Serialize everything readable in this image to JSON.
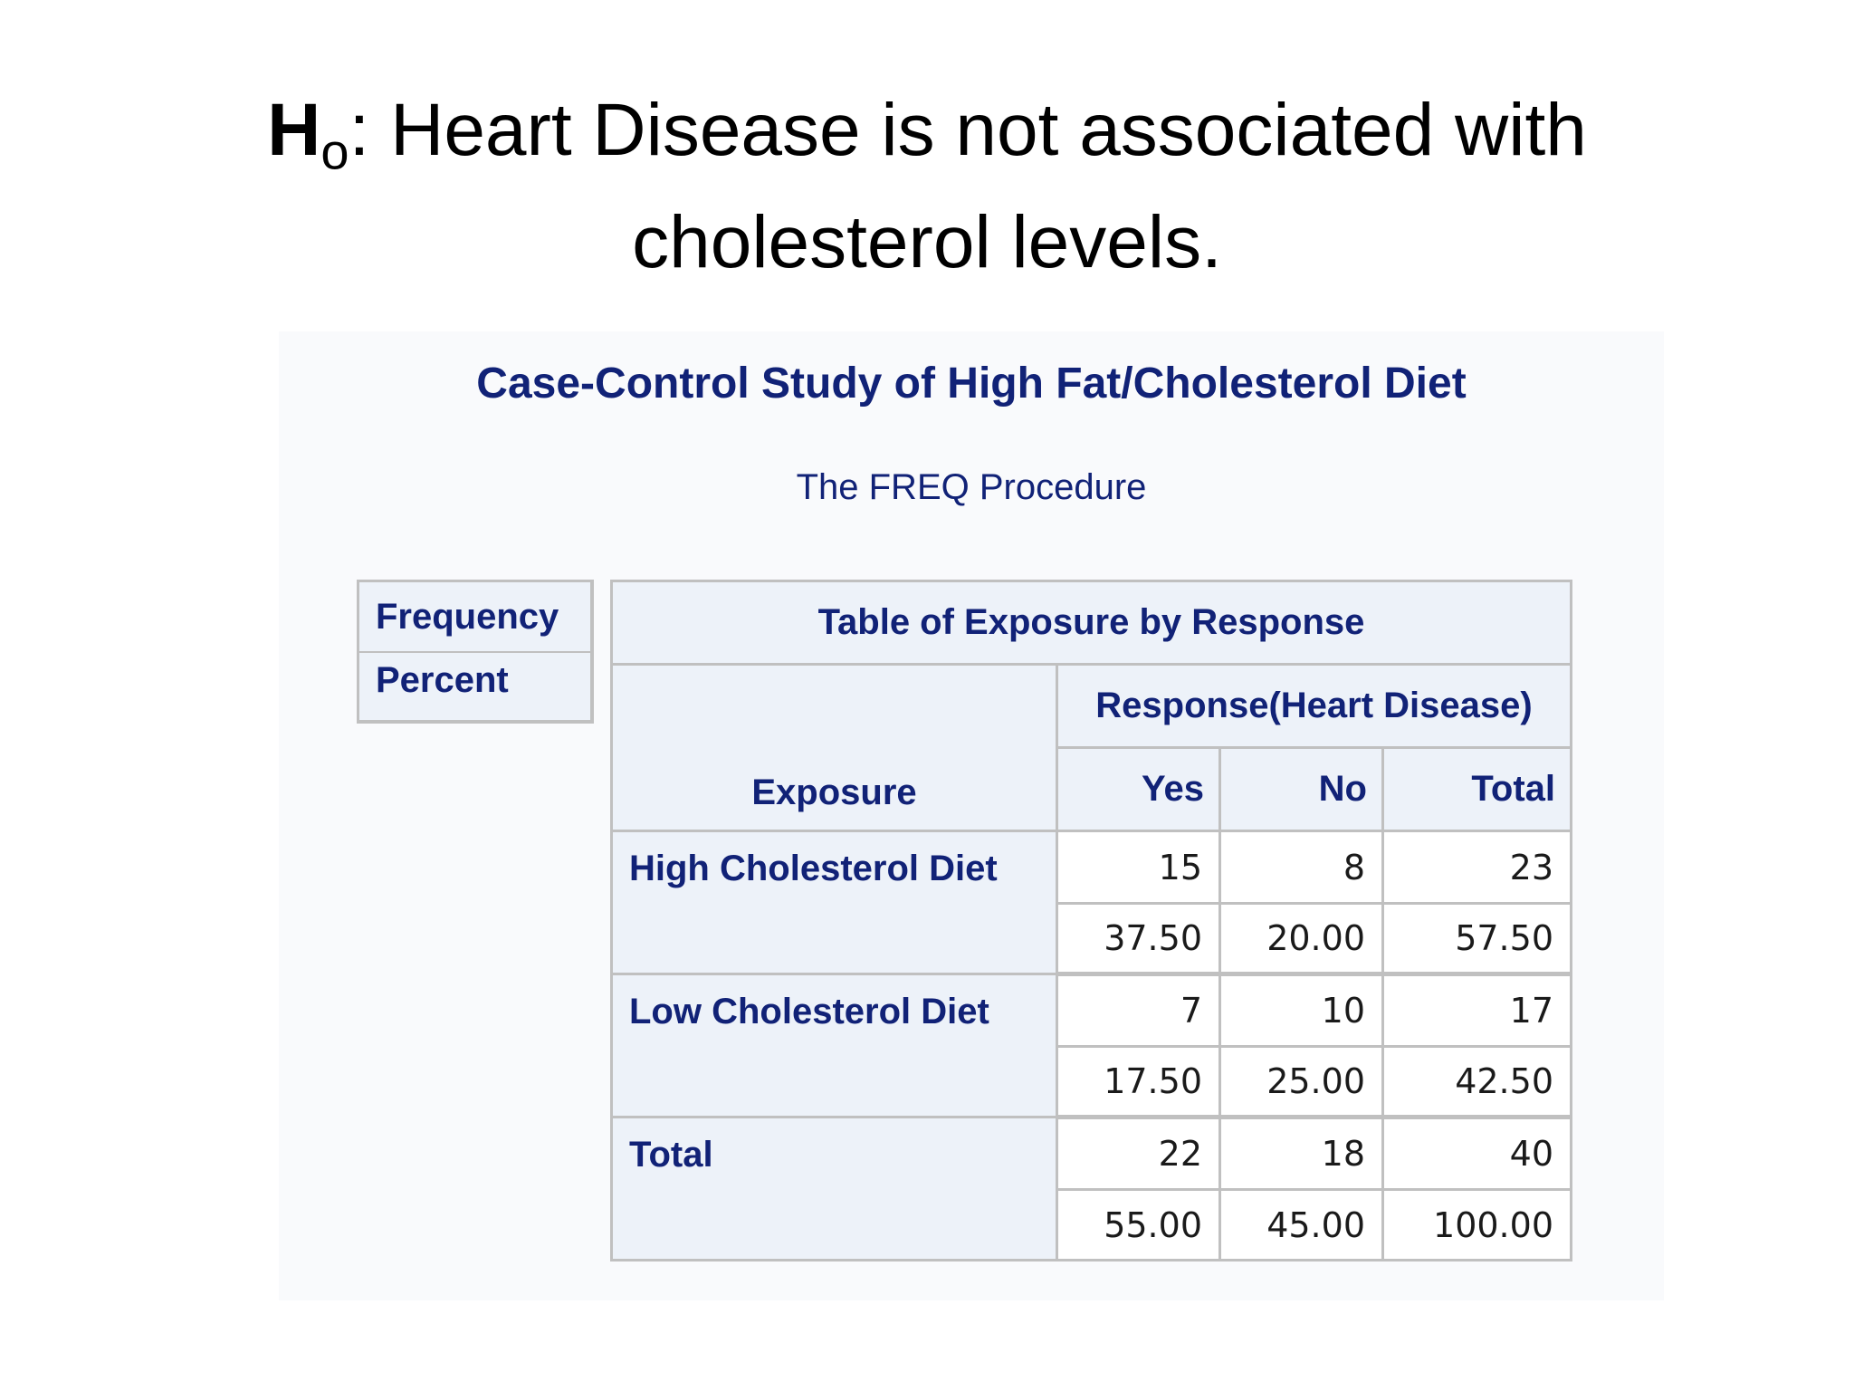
{
  "slide": {
    "title_h": "H",
    "title_sub": "o",
    "title_rest": ": Heart Disease is not associated with",
    "title_line2": "cholesterol levels."
  },
  "output": {
    "title": "Case-Control Study of High Fat/Cholesterol Diet",
    "procedure": "The FREQ Procedure"
  },
  "legend_key": {
    "line1": "Frequency",
    "line2": "Percent"
  },
  "crosstab": {
    "table_title": "Table of Exposure by Response",
    "response_header": "Response(Heart Disease)",
    "row_var_header": "Exposure",
    "columns": [
      "Yes",
      "No",
      "Total"
    ],
    "rows": [
      {
        "label": "High Cholesterol Diet",
        "freq": [
          "15",
          "8",
          "23"
        ],
        "pct": [
          "37.50",
          "20.00",
          "57.50"
        ]
      },
      {
        "label": "Low Cholesterol Diet",
        "freq": [
          "7",
          "10",
          "17"
        ],
        "pct": [
          "17.50",
          "25.00",
          "42.50"
        ]
      },
      {
        "label": "Total",
        "freq": [
          "22",
          "18",
          "40"
        ],
        "pct": [
          "55.00",
          "45.00",
          "100.00"
        ]
      }
    ]
  },
  "colors": {
    "heading_blue": "#112277",
    "header_bg": "#edf2f9",
    "border_gray": "#c0c0c0"
  }
}
